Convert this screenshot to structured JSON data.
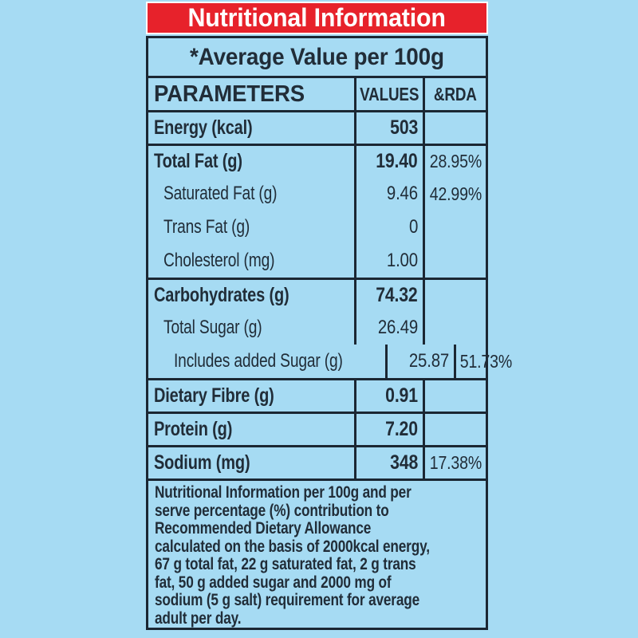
{
  "banner": {
    "title": "Nutritional Information"
  },
  "subtitle": "*Average Value per 100g",
  "header": {
    "parameters": "PARAMETERS",
    "values": "VALUES",
    "rda": "&RDA"
  },
  "rows": [
    {
      "label": "Energy (kcal)",
      "value": "503",
      "rda": ""
    },
    {
      "label": "Total Fat (g)",
      "value": "19.40",
      "rda": "28.95%"
    },
    {
      "label": "Saturated Fat (g)",
      "value": "9.46",
      "rda": "42.99%"
    },
    {
      "label": "Trans Fat (g)",
      "value": "0",
      "rda": ""
    },
    {
      "label": "Cholesterol (mg)",
      "value": "1.00",
      "rda": ""
    },
    {
      "label": "Carbohydrates (g)",
      "value": "74.32",
      "rda": ""
    },
    {
      "label": "Total Sugar (g)",
      "value": "26.49",
      "rda": ""
    },
    {
      "label": "Includes added Sugar (g)",
      "value": "25.87",
      "rda": "51.73%"
    },
    {
      "label": "Dietary Fibre (g)",
      "value": "0.91",
      "rda": ""
    },
    {
      "label": "Protein (g)",
      "value": "7.20",
      "rda": ""
    },
    {
      "label": "Sodium (mg)",
      "value": "348",
      "rda": "17.38%"
    }
  ],
  "footnote_lines": [
    "Nutritional Information per 100g and per",
    "serve percentage (%) contribution to",
    "Recommended Dietary Allowance",
    "calculated on the basis of 2000kcal energy,",
    "67 g total fat, 22 g saturated fat, 2 g trans",
    "fat, 50 g added sugar and 2000 mg of",
    "sodium (5 g salt) requirement for average",
    "adult per day."
  ],
  "colors": {
    "page_bg": "#a6dbf3",
    "banner_bg": "#e7222b",
    "banner_text": "#ffffff",
    "border": "#1b2733",
    "text": "#212d38"
  }
}
